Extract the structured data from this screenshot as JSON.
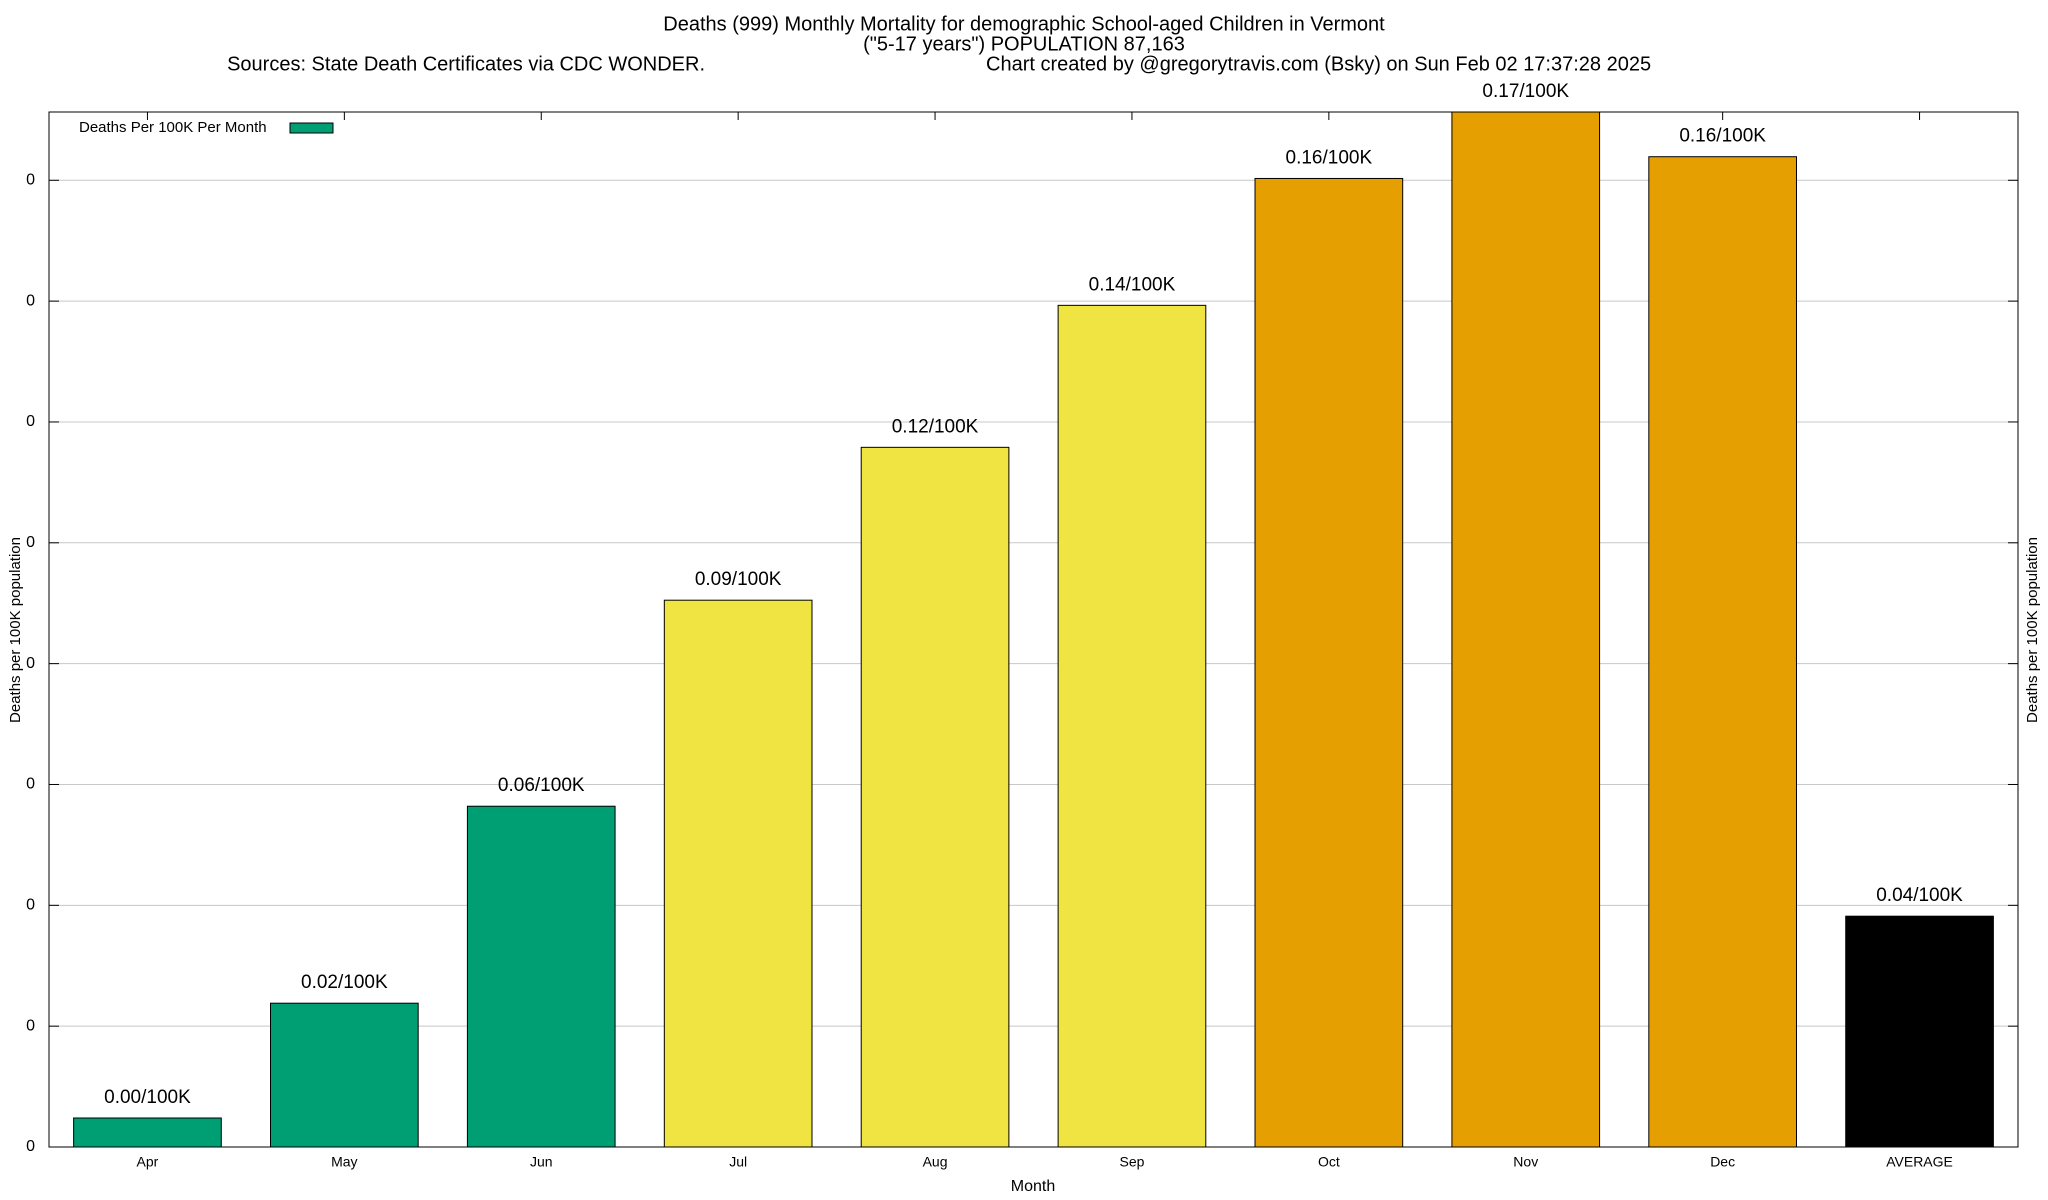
{
  "chart_data": {
    "type": "bar",
    "title": "Deaths (999) Monthly Mortality for demographic School-aged Children in Vermont",
    "subtitle": "(\"5-17 years\") POPULATION 87,163",
    "sources": "Sources: State Death Certificates via CDC WONDER.",
    "credit": "Chart created by @gregorytravis.com (Bsky) on Sun Feb 02 17:37:28 2025",
    "xlabel": "Month",
    "ylabel": "Deaths per 100K population",
    "y2label": "Deaths per 100K population",
    "categories": [
      "Apr",
      "May",
      "Jun",
      "Jul",
      "Aug",
      "Sep",
      "Oct",
      "Nov",
      "Dec",
      "AVERAGE"
    ],
    "series": [
      {
        "name": "Deaths Per 100K Per Month",
        "color": "#009e73",
        "values": [
          0.0048,
          0.0238,
          0.0564,
          0.0905,
          0.1158,
          0.1393,
          0.1603,
          0.1713,
          0.1639,
          0.0382
        ],
        "value_labels": [
          "0.00/100K",
          "0.02/100K",
          "0.06/100K",
          "0.09/100K",
          "0.12/100K",
          "0.14/100K",
          "0.16/100K",
          "0.17/100K",
          "0.16/100K",
          "0.04/100K"
        ],
        "colors": [
          "#009e73",
          "#009e73",
          "#009e73",
          "#f0e442",
          "#f0e442",
          "#f0e442",
          "#e69f00",
          "#e69f00",
          "#e69f00",
          "#000000"
        ]
      }
    ],
    "ylim": [
      0,
      0.1713
    ],
    "yticks": [
      {
        "value": 0,
        "label": "0"
      },
      {
        "value": 0.02,
        "label": "0"
      },
      {
        "value": 0.04,
        "label": "0"
      },
      {
        "value": 0.06,
        "label": "0"
      },
      {
        "value": 0.08,
        "label": "0"
      },
      {
        "value": 0.1,
        "label": "0"
      },
      {
        "value": 0.12,
        "label": "0"
      },
      {
        "value": 0.14,
        "label": "0"
      },
      {
        "value": 0.16,
        "label": "0"
      }
    ],
    "grid": true,
    "legend": "top-left"
  }
}
